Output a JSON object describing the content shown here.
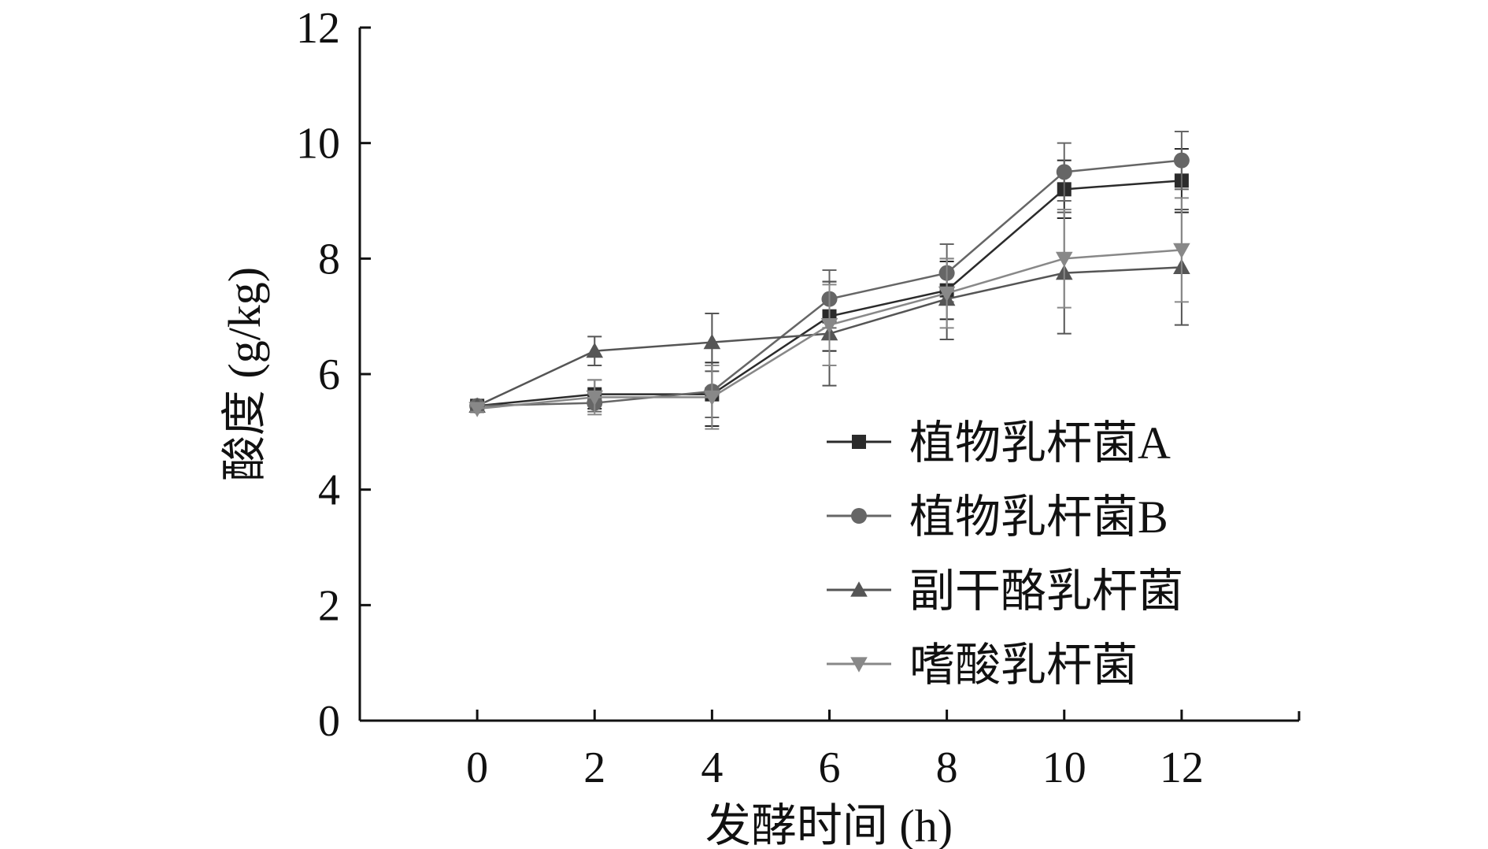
{
  "chart_data": {
    "type": "line",
    "title": "",
    "xlabel": "发酵时间 (h)",
    "ylabel": "酸度 (g/kg)",
    "x": [
      0,
      2,
      4,
      6,
      8,
      10,
      12
    ],
    "xlim": [
      -2,
      14
    ],
    "ylim": [
      0,
      12
    ],
    "x_ticks": [
      0,
      2,
      4,
      6,
      8,
      10,
      12
    ],
    "y_ticks": [
      0,
      2,
      4,
      6,
      8,
      10,
      12
    ],
    "grid": false,
    "legend_position": "center-right",
    "series": [
      {
        "name": "植物乳杆菌A",
        "marker": "square",
        "color": "#2b2b2b",
        "values": [
          5.45,
          5.65,
          5.65,
          7.0,
          7.45,
          9.2,
          9.35
        ],
        "errors": [
          0.05,
          0.25,
          0.55,
          0.6,
          0.5,
          0.5,
          0.55
        ]
      },
      {
        "name": "植物乳杆菌B",
        "marker": "circle",
        "color": "#666666",
        "values": [
          5.45,
          5.5,
          5.7,
          7.3,
          7.75,
          9.5,
          9.7
        ],
        "errors": [
          0.05,
          0.15,
          0.45,
          0.5,
          0.5,
          0.5,
          0.5
        ]
      },
      {
        "name": "副干酪乳杆菌",
        "marker": "triangle-up",
        "color": "#555555",
        "values": [
          5.45,
          6.4,
          6.55,
          6.7,
          7.3,
          7.75,
          7.85
        ],
        "errors": [
          0.05,
          0.25,
          0.5,
          0.9,
          0.7,
          1.05,
          1.0
        ]
      },
      {
        "name": "嗜酸乳杆菌",
        "marker": "triangle-down",
        "color": "#888888",
        "values": [
          5.4,
          5.6,
          5.6,
          6.85,
          7.4,
          8.0,
          8.15
        ],
        "errors": [
          0.05,
          0.3,
          0.55,
          0.7,
          0.6,
          0.85,
          0.9
        ]
      }
    ]
  }
}
